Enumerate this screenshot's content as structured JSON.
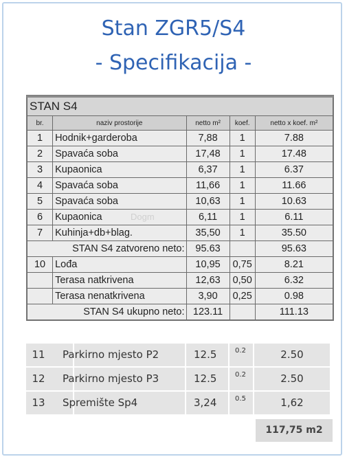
{
  "title_line1": "Stan ZGR5/S4",
  "title_line2": "- Specifikacija -",
  "spec": {
    "name": "STAN S4",
    "headers": [
      "br.",
      "naziv prostorije",
      "netto m²",
      "koef.",
      "netto x koef. m²"
    ],
    "rooms": [
      {
        "no": "1",
        "name": "Hodnik+garderoba",
        "area": "7,88",
        "coef": "1",
        "result": "7.88"
      },
      {
        "no": "2",
        "name": "Spavaća soba",
        "area": "17,48",
        "coef": "1",
        "result": "17.48"
      },
      {
        "no": "3",
        "name": "Kupaonica",
        "area": "6,37",
        "coef": "1",
        "result": "6.37"
      },
      {
        "no": "4",
        "name": "Spavaća soba",
        "area": "11,66",
        "coef": "1",
        "result": "11.66"
      },
      {
        "no": "5",
        "name": "Spavaća soba",
        "area": "10,63",
        "coef": "1",
        "result": "10.63"
      },
      {
        "no": "6",
        "name": "Kupaonica",
        "area": "6,11",
        "coef": "1",
        "result": "6.11"
      },
      {
        "no": "7",
        "name": "Kuhinja+db+blag.",
        "area": "35,50",
        "coef": "1",
        "result": "35.50"
      }
    ],
    "closed": {
      "label": "STAN S4 zatvoreno neto:",
      "area": "95.63",
      "result": "95.63"
    },
    "outdoor": [
      {
        "no": "10",
        "name": "Lođa",
        "area": "10,95",
        "coef": "0,75",
        "result": "8.21"
      },
      {
        "no": "",
        "name": "Terasa natkrivena",
        "area": "12,63",
        "coef": "0,50",
        "result": "6.32"
      },
      {
        "no": "",
        "name": "Terasa nenatkrivena",
        "area": "3,90",
        "coef": "0,25",
        "result": "0.98"
      }
    ],
    "total": {
      "label": "STAN S4 ukupno neto:",
      "area": "123.11",
      "result": "111.13"
    }
  },
  "extras": [
    {
      "no": "11",
      "name": "Parkirno mjesto P2",
      "area": "12.5",
      "coef": "0.2",
      "result": "2.50"
    },
    {
      "no": "12",
      "name": "Parkirno mjesto P3",
      "area": "12.5",
      "coef": "0.2",
      "result": "2.50"
    },
    {
      "no": "13",
      "name": "Spremište Sp4",
      "area": "3,24",
      "coef": "0.5",
      "result": "1,62"
    }
  ],
  "grand_total": "117,75 m2",
  "watermark": "Dogm"
}
